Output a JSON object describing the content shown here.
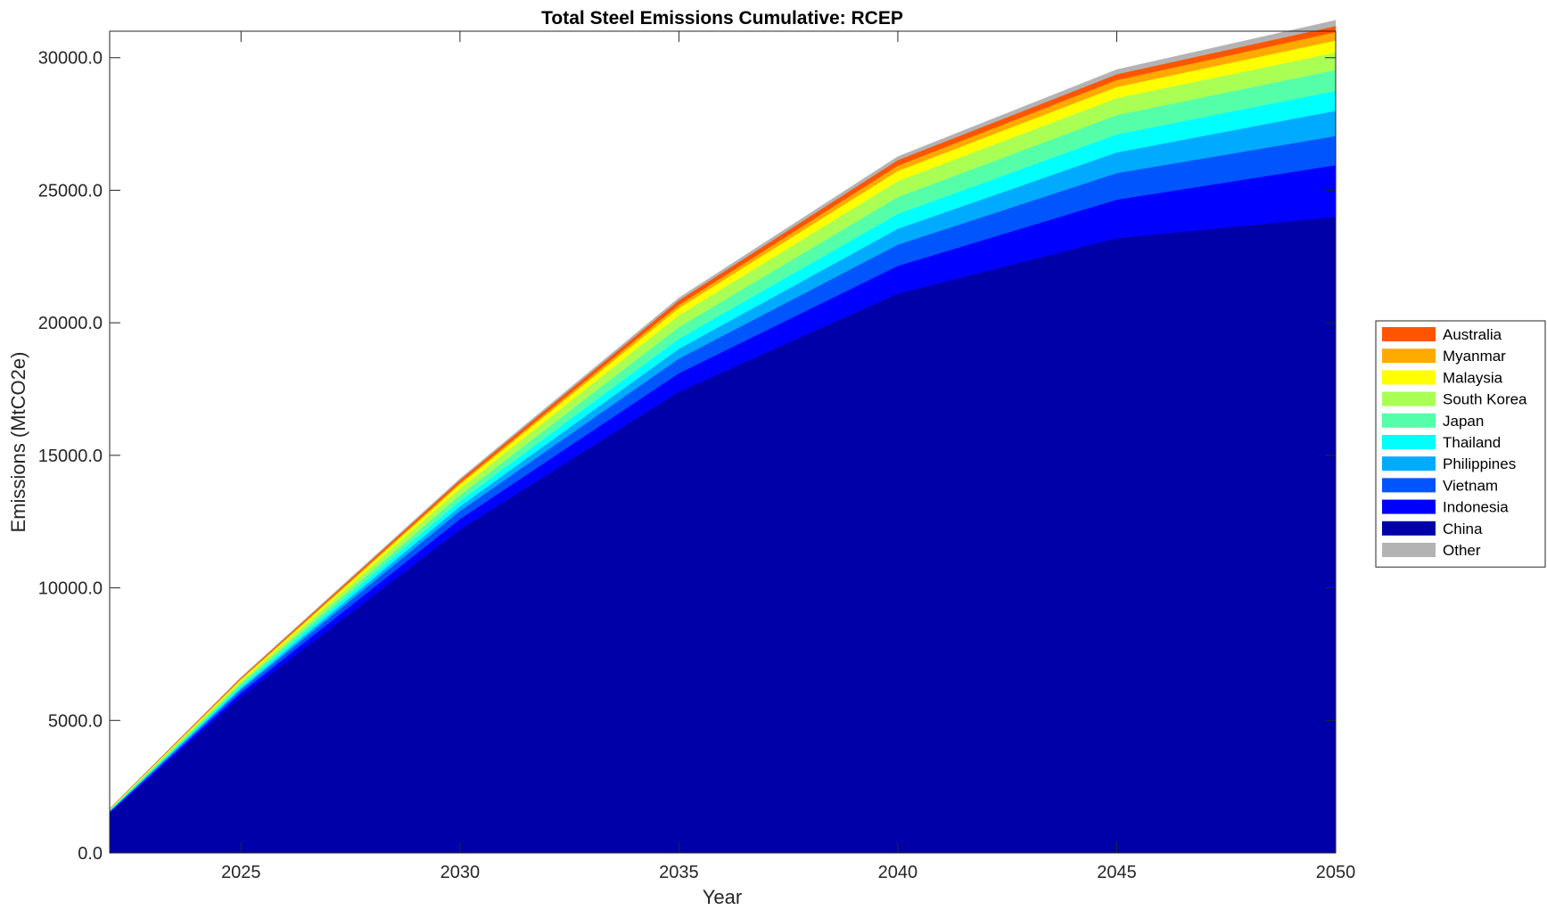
{
  "chart_data": {
    "type": "area",
    "title": "Total Steel Emissions Cumulative: RCEP",
    "xlabel": "Year",
    "ylabel": "Emissions (MtCO2e)",
    "xlim": [
      2022,
      2050
    ],
    "ylim": [
      0,
      31000
    ],
    "xticks": [
      2025,
      2030,
      2035,
      2040,
      2045,
      2050
    ],
    "yticks": [
      0,
      5000,
      10000,
      15000,
      20000,
      25000,
      30000
    ],
    "ytick_labels": [
      "0.0",
      "5000.0",
      "10000.0",
      "15000.0",
      "20000.0",
      "25000.0",
      "30000.0"
    ],
    "grid": false,
    "stacked": true,
    "legend_position": "right",
    "x": [
      2022,
      2025,
      2030,
      2035,
      2040,
      2045,
      2050
    ],
    "series": [
      {
        "name": "China",
        "color": "#0000A8",
        "values": [
          1500,
          5900,
          12200,
          17400,
          21100,
          23200,
          24000
        ]
      },
      {
        "name": "Indonesia",
        "color": "#0000FF",
        "values": [
          40,
          150,
          400,
          700,
          1050,
          1450,
          1950
        ]
      },
      {
        "name": "Vietnam",
        "color": "#0055FF",
        "values": [
          25,
          110,
          300,
          550,
          800,
          1000,
          1100
        ]
      },
      {
        "name": "Philippines",
        "color": "#00AAFF",
        "values": [
          15,
          60,
          180,
          370,
          600,
          780,
          950
        ]
      },
      {
        "name": "Thailand",
        "color": "#00FFFF",
        "values": [
          20,
          80,
          200,
          380,
          560,
          680,
          750
        ]
      },
      {
        "name": "Japan",
        "color": "#55FFAA",
        "values": [
          20,
          90,
          230,
          440,
          640,
          730,
          790
        ]
      },
      {
        "name": "South Korea",
        "color": "#AAFF55",
        "values": [
          25,
          100,
          250,
          450,
          600,
          640,
          660
        ]
      },
      {
        "name": "Malaysia",
        "color": "#FFFF00",
        "values": [
          15,
          60,
          150,
          270,
          380,
          420,
          450
        ]
      },
      {
        "name": "Myanmar",
        "color": "#FFAA00",
        "values": [
          5,
          20,
          60,
          120,
          200,
          260,
          320
        ]
      },
      {
        "name": "Australia",
        "color": "#FF5500",
        "values": [
          10,
          40,
          100,
          170,
          210,
          220,
          230
        ]
      },
      {
        "name": "Other",
        "color": "#B3B3B3",
        "values": [
          5,
          20,
          50,
          90,
          130,
          170,
          210
        ]
      }
    ],
    "legend_order": [
      "Australia",
      "Myanmar",
      "Malaysia",
      "South Korea",
      "Japan",
      "Thailand",
      "Philippines",
      "Vietnam",
      "Indonesia",
      "China",
      "Other"
    ]
  }
}
